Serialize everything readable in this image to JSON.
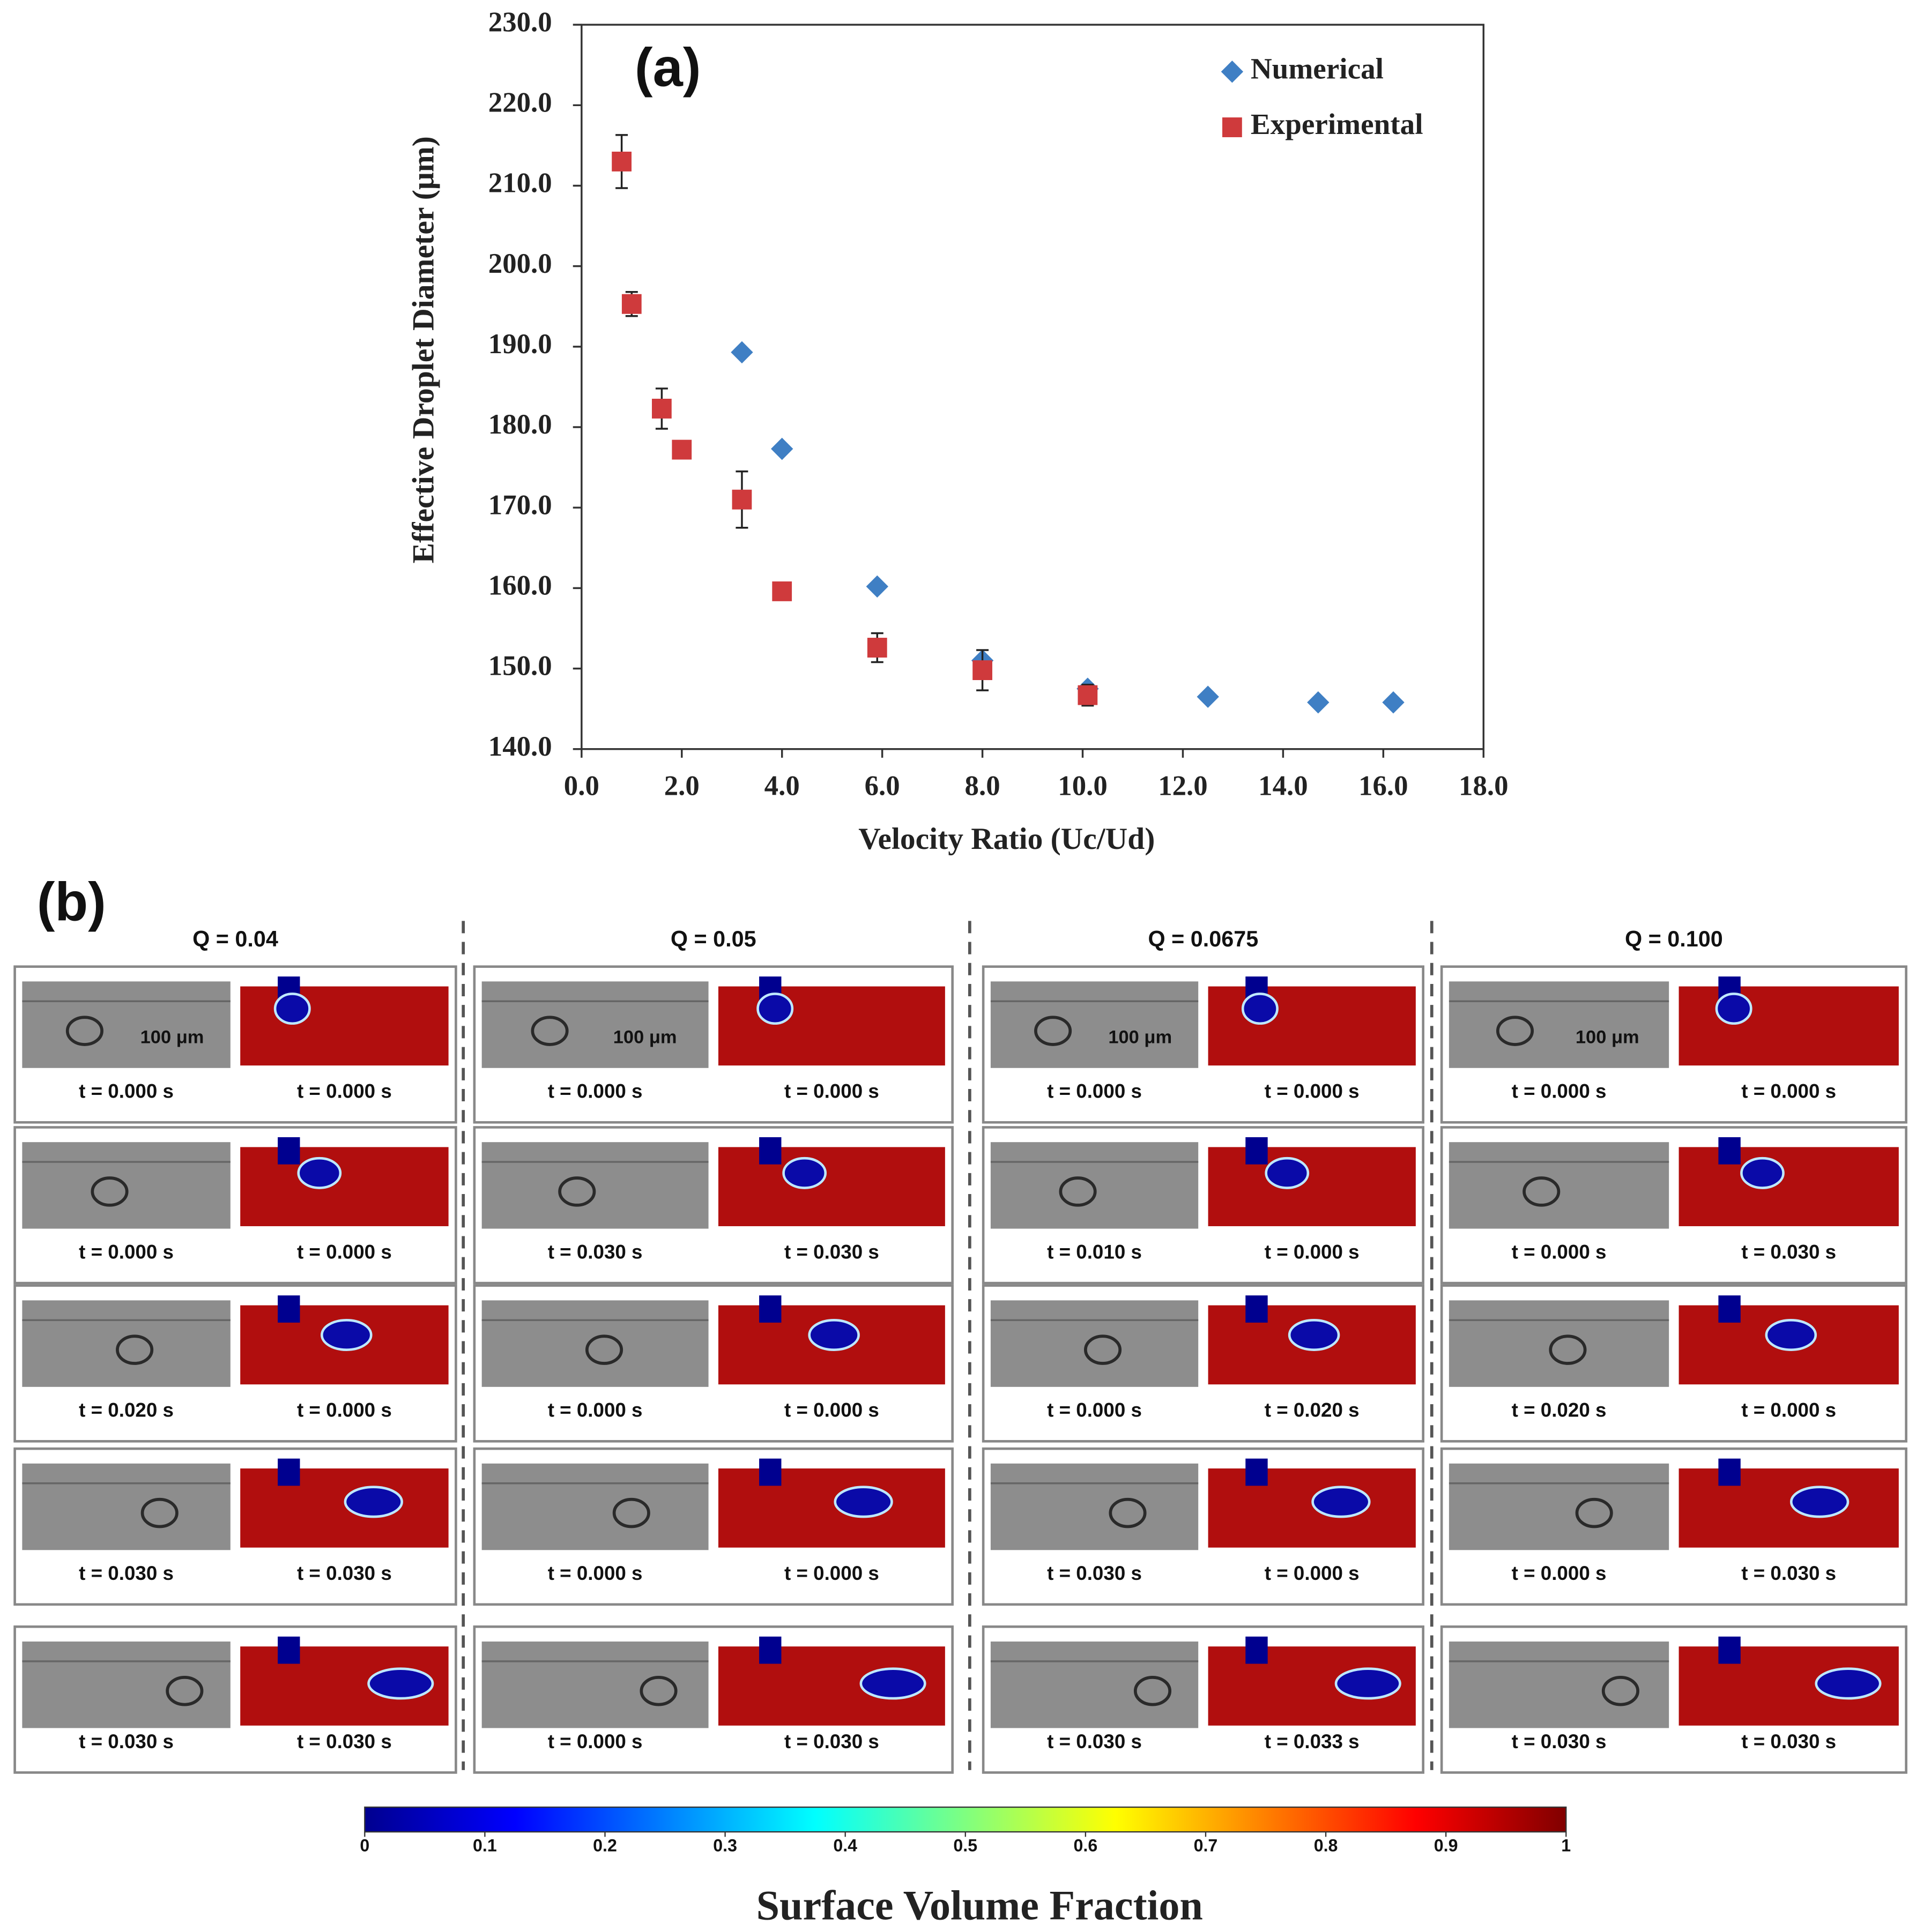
{
  "chart_data": {
    "type": "scatter",
    "panel_label": "(a)",
    "x_label": "Velocity Ratio (Uc/Ud)",
    "y_label": "Effective Droplet Diameter (μm)",
    "xlim": [
      0,
      18
    ],
    "ylim": [
      140,
      230
    ],
    "xticks": [
      {
        "value": 0,
        "label": "0.0"
      },
      {
        "value": 2,
        "label": "2.0"
      },
      {
        "value": 4,
        "label": "4.0"
      },
      {
        "value": 6,
        "label": "6.0"
      },
      {
        "value": 8,
        "label": "8.0"
      },
      {
        "value": 10,
        "label": "10.0"
      },
      {
        "value": 12,
        "label": "12.0"
      },
      {
        "value": 14,
        "label": "14.0"
      },
      {
        "value": 16,
        "label": "16.0"
      },
      {
        "value": 18,
        "label": "18.0"
      }
    ],
    "yticks": [
      {
        "value": 140,
        "label": "140.0"
      },
      {
        "value": 150,
        "label": "150.0"
      },
      {
        "value": 160,
        "label": "160.0"
      },
      {
        "value": 170,
        "label": "170.0"
      },
      {
        "value": 180,
        "label": "180.0"
      },
      {
        "value": 190,
        "label": "190.0"
      },
      {
        "value": 200,
        "label": "200.0"
      },
      {
        "value": 210,
        "label": "210.0"
      },
      {
        "value": 220,
        "label": "220.0"
      },
      {
        "value": 230,
        "label": "230.0"
      }
    ],
    "legend": "upper right",
    "series": [
      {
        "name": "Numerical",
        "color": "#3f7fc4",
        "marker": "diamond",
        "x": [
          3.2,
          4.0,
          5.9,
          8.0,
          10.1,
          12.5,
          14.7,
          16.2
        ],
        "values": [
          189.3,
          177.3,
          160.2,
          151.0,
          147.5,
          146.5,
          145.8,
          145.8
        ]
      },
      {
        "name": "Experimental",
        "color": "#cf3a3c",
        "marker": "square",
        "x": [
          0.8,
          1.0,
          1.6,
          2.0,
          3.2,
          4.0,
          5.9,
          8.0,
          10.1
        ],
        "values": [
          213.0,
          195.3,
          182.3,
          177.2,
          171.0,
          159.6,
          152.6,
          149.8,
          146.7
        ],
        "errors": [
          3.3,
          1.5,
          2.5,
          1.0,
          3.5,
          0.5,
          1.8,
          2.5,
          1.3
        ]
      }
    ]
  },
  "panel_b": {
    "panel_label": "(b)",
    "columns": [
      {
        "title": "Q = 0.04",
        "scale_label": "100 μm",
        "rows": [
          [
            "t = 0.000 s",
            "t = 0.000 s"
          ],
          [
            "t = 0.000 s",
            "t = 0.000 s"
          ],
          [
            "t = 0.020 s",
            "t = 0.000 s"
          ],
          [
            "t = 0.030 s",
            "t = 0.030 s"
          ],
          [
            "t = 0.030 s",
            "t = 0.030 s"
          ]
        ]
      },
      {
        "title": "Q = 0.05",
        "scale_label": "100 μm",
        "rows": [
          [
            "t = 0.000 s",
            "t = 0.000 s"
          ],
          [
            "t = 0.030 s",
            "t = 0.030 s"
          ],
          [
            "t = 0.000 s",
            "t = 0.000 s"
          ],
          [
            "t = 0.000 s",
            "t = 0.000 s"
          ],
          [
            "t = 0.000 s",
            "t = 0.030 s"
          ]
        ]
      },
      {
        "title": "Q = 0.0675",
        "scale_label": "100 μm",
        "rows": [
          [
            "t = 0.000 s",
            "t = 0.000 s"
          ],
          [
            "t = 0.010 s",
            "t = 0.000 s"
          ],
          [
            "t = 0.000 s",
            "t = 0.020 s"
          ],
          [
            "t = 0.030 s",
            "t = 0.000 s"
          ],
          [
            "t = 0.030 s",
            "t = 0.033 s"
          ]
        ]
      },
      {
        "title": "Q = 0.100",
        "scale_label": "100 μm",
        "rows": [
          [
            "t = 0.000 s",
            "t = 0.000 s"
          ],
          [
            "t = 0.000 s",
            "t = 0.030 s"
          ],
          [
            "t = 0.020 s",
            "t = 0.000 s"
          ],
          [
            "t = 0.000 s",
            "t = 0.030 s"
          ],
          [
            "t = 0.030 s",
            "t = 0.030 s"
          ]
        ]
      }
    ],
    "colorbar": {
      "title": "Surface Volume Fraction",
      "ticks": [
        0,
        0.1,
        0.2,
        0.3,
        0.4,
        0.5,
        0.6,
        0.7,
        0.8,
        0.9,
        1
      ]
    }
  }
}
